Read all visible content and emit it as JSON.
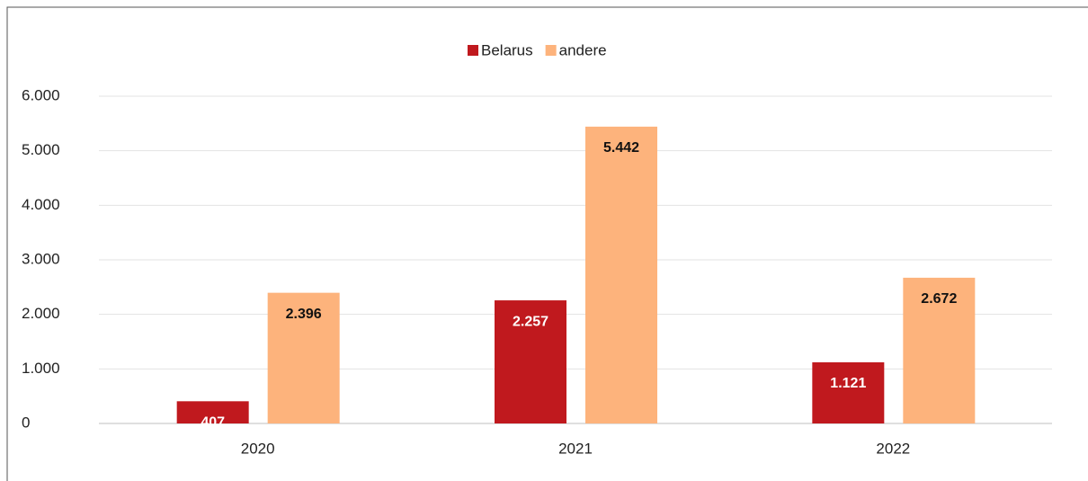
{
  "chart_data": {
    "type": "bar",
    "categories": [
      "2020",
      "2021",
      "2022"
    ],
    "series": [
      {
        "name": "Belarus",
        "color": "#c0191e",
        "values": [
          407,
          2257,
          1121
        ],
        "value_labels": [
          "407",
          "2.257",
          "1.121"
        ],
        "label_color": "#ffffff"
      },
      {
        "name": "andere",
        "color": "#fdb37c",
        "values": [
          2396,
          5442,
          2672
        ],
        "value_labels": [
          "2.396",
          "5.442",
          "2.672"
        ],
        "label_color": "#111111"
      }
    ],
    "ylim": [
      0,
      6000
    ],
    "yticks": [
      0,
      {
        "value": 1000,
        "label": "1.000"
      },
      {
        "value": 2000,
        "label": "2.000"
      },
      {
        "value": 3000,
        "label": "3.000"
      },
      {
        "value": 4000,
        "label": "4.000"
      },
      {
        "value": 5000,
        "label": "5.000"
      },
      {
        "value": 6000,
        "label": "6.000"
      }
    ],
    "grid": true,
    "legend": "top"
  }
}
